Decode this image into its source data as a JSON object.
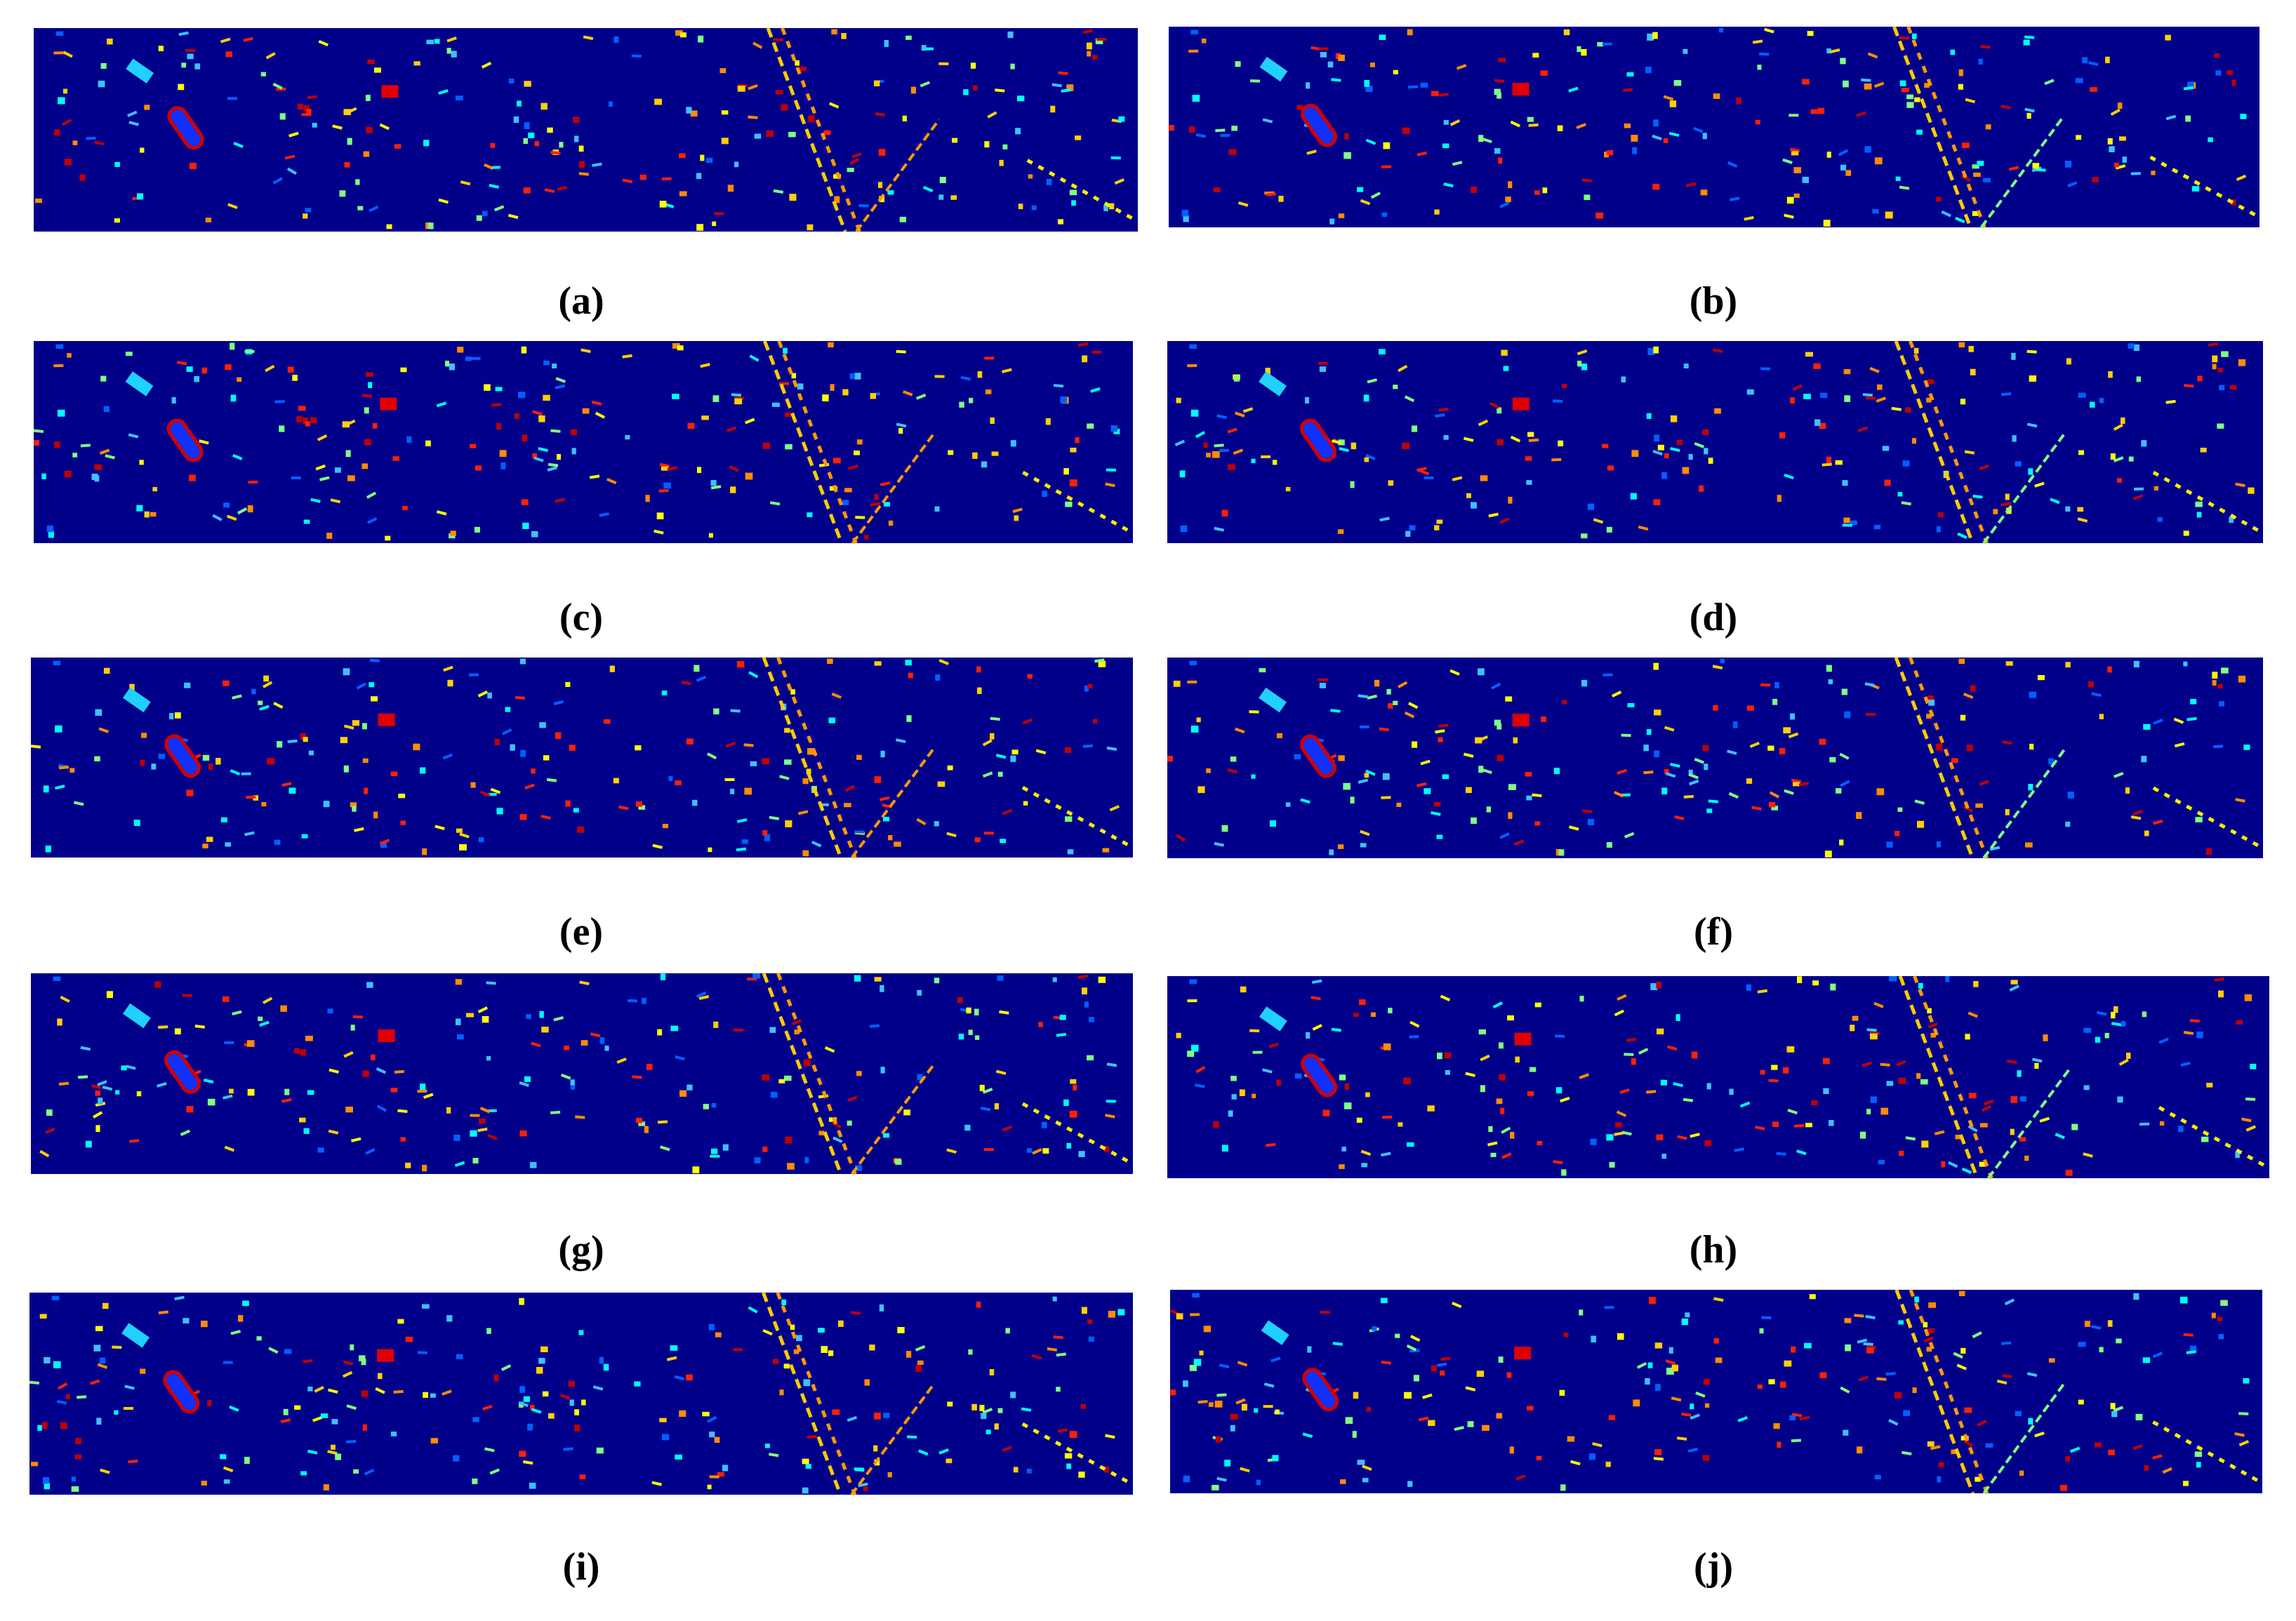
{
  "panels": [
    {
      "caption": "(a)"
    },
    {
      "caption": "(b)"
    },
    {
      "caption": "(c)"
    },
    {
      "caption": "(d)"
    },
    {
      "caption": "(e)"
    },
    {
      "caption": "(f)"
    },
    {
      "caption": "(g)"
    },
    {
      "caption": "(h)"
    },
    {
      "caption": "(i)"
    },
    {
      "caption": "(j)"
    }
  ]
}
